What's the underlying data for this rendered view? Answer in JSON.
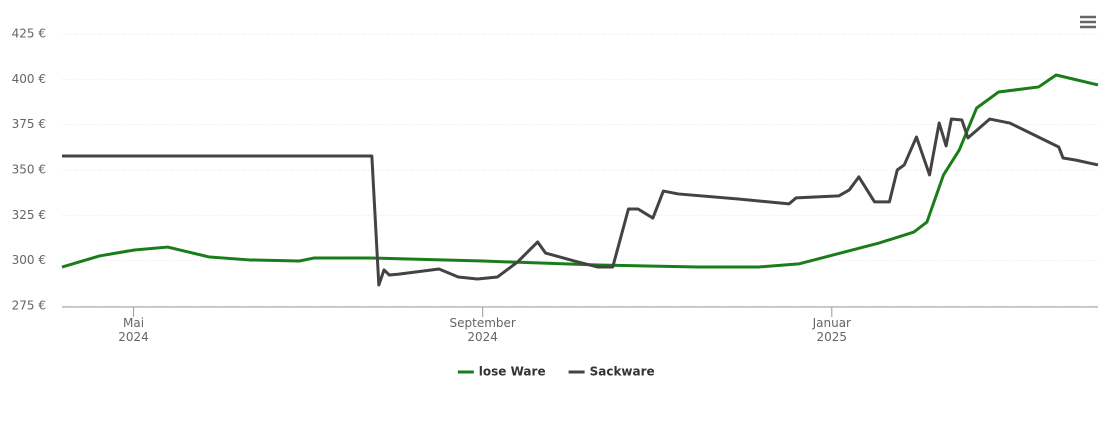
{
  "chart_data": {
    "type": "line",
    "x_label_note_free": null,
    "xlim": [
      3.18,
      15.05
    ],
    "xticks": [
      {
        "value": 4,
        "label": "Mai\n2024"
      },
      {
        "value": 8,
        "label": "September\n2024"
      },
      {
        "value": 12,
        "label": "Januar\n2025"
      }
    ],
    "ylim": [
      275,
      425
    ],
    "yticks": [
      {
        "value": 275,
        "label": "275 €"
      },
      {
        "value": 300,
        "label": "300 €"
      },
      {
        "value": 325,
        "label": "325 €"
      },
      {
        "value": 350,
        "label": "350 €"
      },
      {
        "value": 375,
        "label": "375 €"
      },
      {
        "value": 400,
        "label": "400 €"
      },
      {
        "value": 425,
        "label": "425 €"
      }
    ],
    "grid": true,
    "series": [
      {
        "name": "lose Ware",
        "color": "#1a7d1a",
        "x": [
          3.18,
          3.61,
          4.01,
          4.39,
          4.87,
          5.33,
          5.9,
          6.07,
          6.7,
          8,
          9.32,
          10.47,
          11.16,
          11.62,
          12.54,
          12.94,
          13.09,
          13.28,
          13.46,
          13.66,
          13.91,
          14.37,
          14.57,
          15.05
        ],
        "values": [
          296.5,
          302.6,
          305.9,
          307.5,
          302,
          300.4,
          299.8,
          301.5,
          301.5,
          299.8,
          297.6,
          296.5,
          296.5,
          298.2,
          309.7,
          315.8,
          321.3,
          347.3,
          361,
          384.2,
          393,
          395.8,
          402.4,
          396.9
        ]
      },
      {
        "name": "Sackware",
        "color": "#434343",
        "x": [
          3.18,
          6.73,
          6.81,
          6.87,
          6.93,
          7.04,
          7.5,
          7.72,
          7.94,
          8.17,
          8.4,
          8.63,
          8.72,
          9.09,
          9.32,
          9.49,
          9.67,
          9.78,
          9.95,
          10.07,
          10.24,
          10.93,
          11.51,
          11.59,
          12.08,
          12.2,
          12.31,
          12.49,
          12.66,
          12.75,
          12.83,
          12.97,
          13.12,
          13.23,
          13.31,
          13.37,
          13.49,
          13.56,
          13.81,
          14.04,
          14.6,
          14.65,
          14.79,
          15.05
        ],
        "values": [
          357.7,
          357.7,
          286.6,
          294.9,
          292.1,
          292.6,
          295.4,
          291,
          289.9,
          291,
          299.3,
          310.3,
          304.2,
          299.3,
          296.5,
          296.5,
          328.5,
          328.5,
          323.5,
          338.4,
          336.8,
          334,
          331.3,
          334.6,
          335.7,
          339,
          346.2,
          332.4,
          332.4,
          350,
          352.8,
          368.2,
          347.3,
          375.9,
          363.3,
          378.1,
          377.6,
          367.7,
          378.1,
          375.9,
          362.7,
          356.6,
          355.5,
          352.8
        ]
      }
    ]
  }
}
